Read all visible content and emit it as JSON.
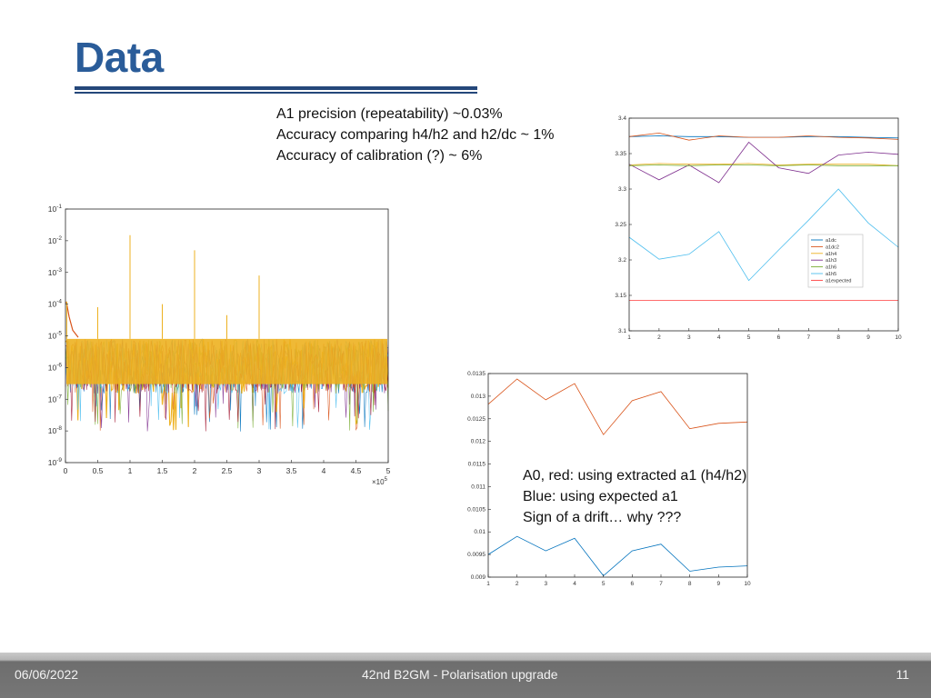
{
  "slide": {
    "title": "Data",
    "notes_top": [
      "A1 precision (repeatability) ~0.03%",
      "Accuracy comparing h4/h2 and h2/dc ~ 1%",
      "Accuracy of calibration (?) ~ 6%"
    ],
    "notes_bottom": [
      "A0, red: using extracted a1 (h4/h2)",
      "Blue: using expected a1",
      "Sign of a drift… why ???"
    ]
  },
  "footer": {
    "date": "06/06/2022",
    "title": "42nd B2GM - Polarisation upgrade",
    "page": "11"
  },
  "colors": {
    "title": "#2a5c99",
    "rule": "#24477a",
    "matlab_blue": "#0072BD",
    "matlab_orange": "#D95319",
    "matlab_yellow": "#EDB120",
    "matlab_purple": "#7E2F8E",
    "matlab_green": "#77AC30",
    "matlab_cyan": "#4DBEEE",
    "matlab_red": "#A2142F"
  },
  "chart_data": [
    {
      "type": "line",
      "yscale": "log",
      "x_tick_labels": [
        "0",
        "0.5",
        "1",
        "1.5",
        "2",
        "2.5",
        "3",
        "3.5",
        "4",
        "4.5",
        "5"
      ],
      "x_multiplier": "×10",
      "x_multiplier_exp": "5",
      "xlim": [
        0,
        500000
      ],
      "y_ticks": [
        {
          "base": "10",
          "exp": "-1",
          "value": 0.1
        },
        {
          "base": "10",
          "exp": "-2",
          "value": 0.01
        },
        {
          "base": "10",
          "exp": "-3",
          "value": 0.001
        },
        {
          "base": "10",
          "exp": "-4",
          "value": 0.0001
        },
        {
          "base": "10",
          "exp": "-5",
          "value": 1e-05
        },
        {
          "base": "10",
          "exp": "-6",
          "value": 1e-06
        },
        {
          "base": "10",
          "exp": "-7",
          "value": 1e-07
        },
        {
          "base": "10",
          "exp": "-8",
          "value": 1e-08
        },
        {
          "base": "10",
          "exp": "-9",
          "value": 1e-09
        }
      ],
      "ylim": [
        1e-09,
        0.1
      ],
      "noise_band": {
        "low": 1.5e-07,
        "high": 8e-06
      },
      "series_colors": [
        "#0072BD",
        "#D95319",
        "#EDB120",
        "#7E2F8E",
        "#77AC30",
        "#4DBEEE",
        "#A2142F"
      ],
      "peaks": [
        {
          "x": 2000,
          "y": 0.00012
        },
        {
          "x": 50000,
          "y": 8e-05
        },
        {
          "x": 100000,
          "y": 0.015
        },
        {
          "x": 150000,
          "y": 0.0001
        },
        {
          "x": 200000,
          "y": 0.005
        },
        {
          "x": 250000,
          "y": 4.5e-05
        },
        {
          "x": 300000,
          "y": 0.0008
        }
      ],
      "legend": "none",
      "grid": false
    },
    {
      "type": "line",
      "x": [
        1,
        2,
        3,
        4,
        5,
        6,
        7,
        8,
        9,
        10
      ],
      "x_tick_labels": [
        "1",
        "2",
        "3",
        "4",
        "5",
        "6",
        "7",
        "8",
        "9",
        "10"
      ],
      "y_tick_labels": [
        "3.1",
        "3.15",
        "3.2",
        "3.25",
        "3.3",
        "3.35",
        "3.4"
      ],
      "xlim": [
        1,
        10
      ],
      "ylim": [
        3.1,
        3.4
      ],
      "legend_position": "right",
      "grid": false,
      "series": [
        {
          "name": "a1dc",
          "color": "#0072BD",
          "values": [
            3.374,
            3.375,
            3.374,
            3.374,
            3.373,
            3.373,
            3.374,
            3.374,
            3.373,
            3.372
          ]
        },
        {
          "name": "a1dc2",
          "color": "#D95319",
          "values": [
            3.374,
            3.379,
            3.369,
            3.375,
            3.373,
            3.373,
            3.375,
            3.373,
            3.372,
            3.37
          ]
        },
        {
          "name": "a1h4",
          "color": "#EDB120",
          "values": [
            3.334,
            3.336,
            3.335,
            3.335,
            3.336,
            3.334,
            3.335,
            3.335,
            3.335,
            3.333
          ]
        },
        {
          "name": "a1h3",
          "color": "#7E2F8E",
          "values": [
            3.335,
            3.313,
            3.334,
            3.309,
            3.366,
            3.33,
            3.322,
            3.348,
            3.352,
            3.349
          ]
        },
        {
          "name": "a1h6",
          "color": "#77AC30",
          "values": [
            3.333,
            3.334,
            3.333,
            3.334,
            3.334,
            3.333,
            3.334,
            3.333,
            3.333,
            3.333
          ]
        },
        {
          "name": "a1h5",
          "color": "#4DBEEE",
          "values": [
            3.232,
            3.201,
            3.208,
            3.24,
            3.171,
            3.214,
            3.256,
            3.3,
            3.252,
            3.218
          ]
        },
        {
          "name": "a1expected",
          "color": "#FF3C3C",
          "values": [
            3.143,
            3.143,
            3.143,
            3.143,
            3.143,
            3.143,
            3.143,
            3.143,
            3.143,
            3.143
          ]
        }
      ]
    },
    {
      "type": "line",
      "x": [
        1,
        2,
        3,
        4,
        5,
        6,
        7,
        8,
        9,
        10
      ],
      "x_tick_labels": [
        "1",
        "2",
        "3",
        "4",
        "5",
        "6",
        "7",
        "8",
        "9",
        "10"
      ],
      "y_tick_labels": [
        "0.009",
        "0.0095",
        "0.01",
        "0.0105",
        "0.011",
        "0.0115",
        "0.012",
        "0.0125",
        "0.013",
        "0.0135"
      ],
      "xlim": [
        1,
        10
      ],
      "ylim": [
        0.009,
        0.0135
      ],
      "legend": "none",
      "grid": false,
      "series": [
        {
          "color": "#D95319",
          "values": [
            0.01282,
            0.01338,
            0.01292,
            0.01328,
            0.01215,
            0.0129,
            0.0131,
            0.01228,
            0.0124,
            0.01243
          ]
        },
        {
          "color": "#0072BD",
          "values": [
            0.0095,
            0.0099,
            0.00958,
            0.00986,
            0.00903,
            0.00958,
            0.00973,
            0.00913,
            0.00922,
            0.00925
          ]
        }
      ]
    }
  ]
}
